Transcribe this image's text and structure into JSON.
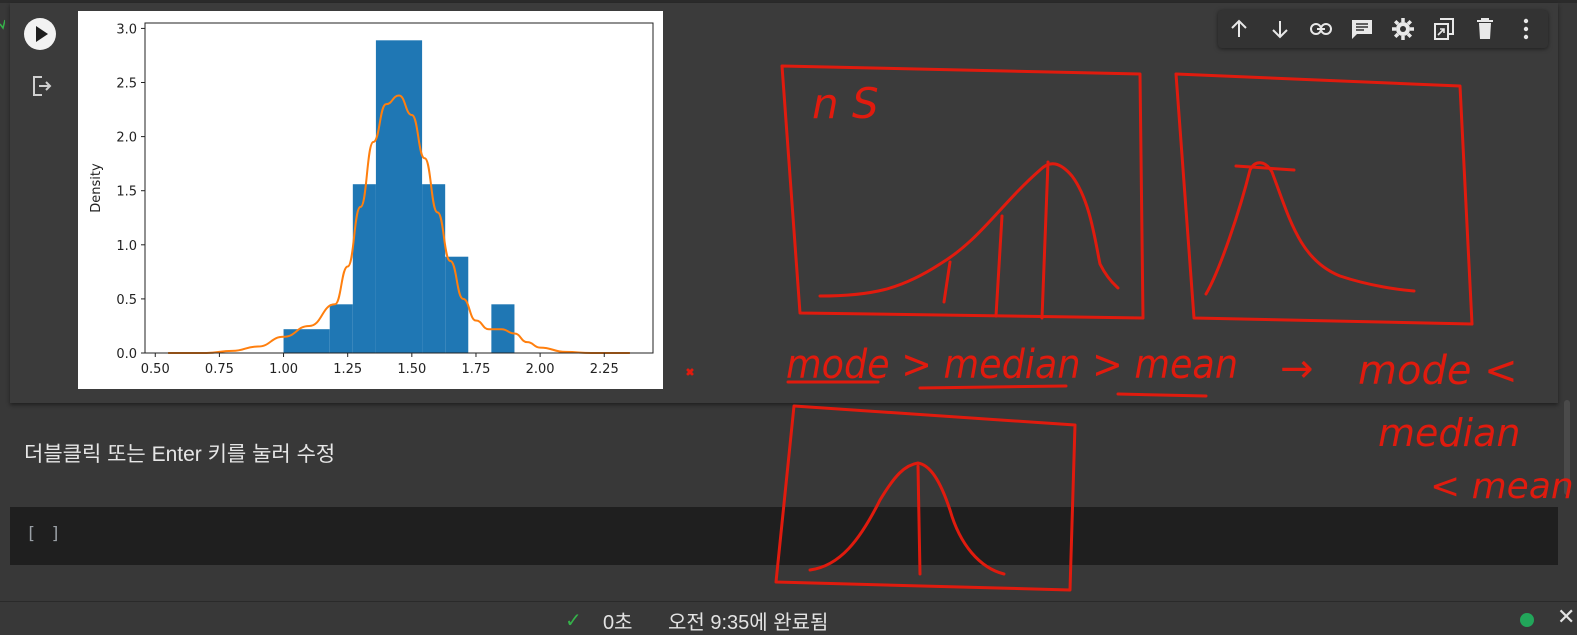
{
  "toolbar": {
    "items": [
      {
        "name": "move-up",
        "icon": "arrow-up-icon"
      },
      {
        "name": "move-down",
        "icon": "arrow-down-icon"
      },
      {
        "name": "link",
        "icon": "link-icon"
      },
      {
        "name": "comment",
        "icon": "comment-icon"
      },
      {
        "name": "settings",
        "icon": "gear-icon"
      },
      {
        "name": "mirror",
        "icon": "mirror-cell-icon"
      },
      {
        "name": "delete",
        "icon": "trash-icon"
      },
      {
        "name": "more",
        "icon": "more-vert-icon"
      }
    ]
  },
  "output_cell": {
    "run_icon": "play-icon",
    "output_icon": "output-exit-icon"
  },
  "chart_data": {
    "type": "bar",
    "title": "",
    "xlabel": "",
    "ylabel": "Density",
    "xlim": [
      0.46,
      2.44
    ],
    "ylim": [
      0,
      3.05
    ],
    "x_ticks": [
      "0.50",
      "0.75",
      "1.00",
      "1.25",
      "1.50",
      "1.75",
      "2.00",
      "2.25"
    ],
    "y_ticks": [
      "0.0",
      "0.5",
      "1.0",
      "1.5",
      "2.0",
      "2.5",
      "3.0"
    ],
    "histogram": {
      "color": "#1f77b4",
      "bins": [
        {
          "x0": 1.0,
          "x1": 1.18,
          "density": 0.22
        },
        {
          "x0": 1.18,
          "x1": 1.27,
          "density": 0.45
        },
        {
          "x0": 1.27,
          "x1": 1.36,
          "density": 1.56
        },
        {
          "x0": 1.36,
          "x1": 1.54,
          "density": 2.89
        },
        {
          "x0": 1.54,
          "x1": 1.63,
          "density": 1.56
        },
        {
          "x0": 1.63,
          "x1": 1.72,
          "density": 0.89
        },
        {
          "x0": 1.81,
          "x1": 1.9,
          "density": 0.45
        }
      ]
    },
    "kde": {
      "color": "#ff7f0e",
      "x": [
        0.55,
        0.7,
        0.8,
        0.9,
        1.0,
        1.1,
        1.2,
        1.25,
        1.3,
        1.35,
        1.4,
        1.45,
        1.5,
        1.55,
        1.6,
        1.65,
        1.7,
        1.75,
        1.8,
        1.85,
        1.9,
        1.95,
        2.0,
        2.1,
        2.2,
        2.35
      ],
      "y": [
        0.0,
        0.0,
        0.02,
        0.06,
        0.15,
        0.25,
        0.45,
        0.8,
        1.35,
        1.95,
        2.3,
        2.38,
        2.2,
        1.8,
        1.3,
        0.85,
        0.5,
        0.3,
        0.22,
        0.22,
        0.18,
        0.1,
        0.05,
        0.01,
        0.0,
        0.0
      ]
    }
  },
  "markdown_cell": {
    "text": "더블클릭 또는 Enter 키를 눌러 수정"
  },
  "code_cell": {
    "prompt": "[ ]"
  },
  "status_bar": {
    "check_icon": "check-icon",
    "duration": "0초",
    "completed": "오전 9:35에 완료됨",
    "close_icon": "close-icon"
  },
  "annotations": {
    "color": "#e01b0e",
    "labels": {
      "ns": "n S",
      "skew_order": "mode > median > mean",
      "arrow": "→",
      "right_1": "mode <",
      "right_2": "median",
      "right_3": "< mean"
    }
  }
}
